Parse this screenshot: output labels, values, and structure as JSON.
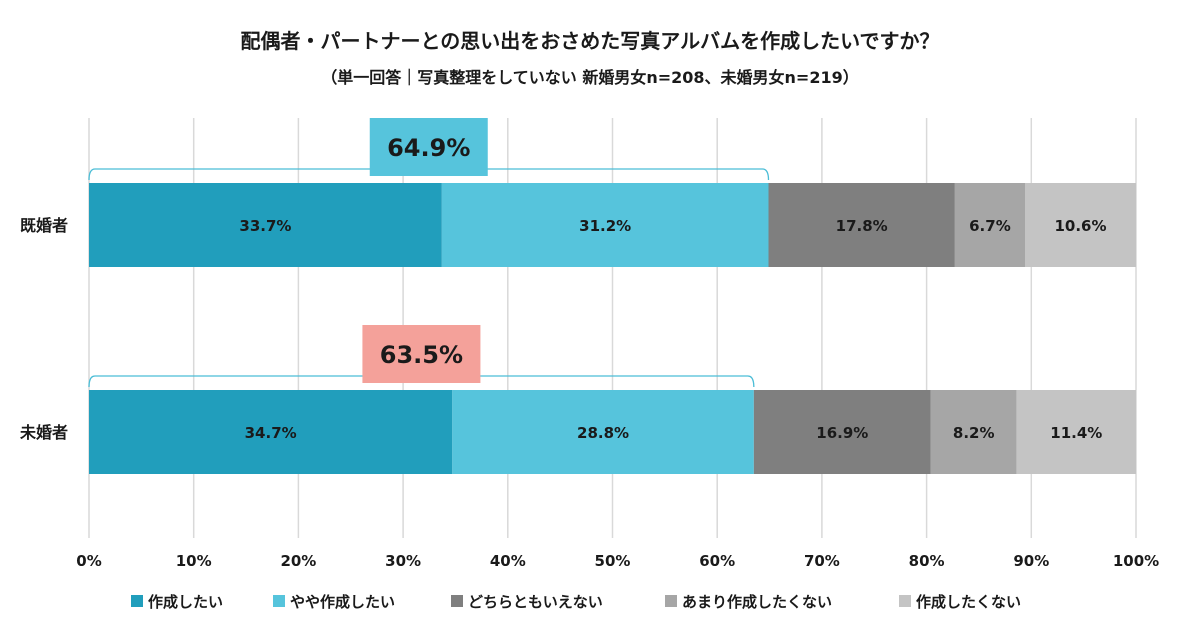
{
  "chart_data": {
    "type": "bar",
    "orientation": "horizontal",
    "stacked": true,
    "title": "配偶者・パートナーとの思い出をおさめた写真アルバムを作成したいですか？",
    "subtitle": "（単一回答｜写真整理をしていない 新婚男女n=208、未婚男女n=219）",
    "categories": [
      "既婚者",
      "未婚者"
    ],
    "series": [
      {
        "name": "作成したい",
        "color": "#219EBC",
        "values": [
          33.7,
          34.7
        ],
        "value_labels": [
          "33.7%",
          "34.7%"
        ]
      },
      {
        "name": "やや作成したい",
        "color": "#56C4DC",
        "values": [
          31.2,
          28.8
        ],
        "value_labels": [
          "31.2%",
          "28.8%"
        ]
      },
      {
        "name": "どちらともいえない",
        "color": "#7F7F7F",
        "values": [
          17.8,
          16.9
        ],
        "value_labels": [
          "17.8%",
          "16.9%"
        ]
      },
      {
        "name": "あまり作成したくない",
        "color": "#A6A6A6",
        "values": [
          6.7,
          8.2
        ],
        "value_labels": [
          "6.7%",
          "8.2%"
        ]
      },
      {
        "name": "作成したくない",
        "color": "#C4C4C4",
        "values": [
          10.6,
          11.4
        ],
        "value_labels": [
          "10.6%",
          "11.4%"
        ]
      }
    ],
    "annotations": [
      {
        "category": "既婚者",
        "value": 64.9,
        "text": "64.9%",
        "fill": "#56C4DC"
      },
      {
        "category": "未婚者",
        "value": 63.5,
        "text": "63.5%",
        "fill": "#F4A19A"
      }
    ],
    "xlim": [
      0,
      100
    ],
    "xticks": [
      0,
      10,
      20,
      30,
      40,
      50,
      60,
      70,
      80,
      90,
      100
    ],
    "xtick_labels": [
      "0%",
      "10%",
      "20%",
      "30%",
      "40%",
      "50%",
      "60%",
      "70%",
      "80%",
      "90%",
      "100%"
    ],
    "grid": true,
    "legend_position": "bottom",
    "legend_marker": "■"
  }
}
